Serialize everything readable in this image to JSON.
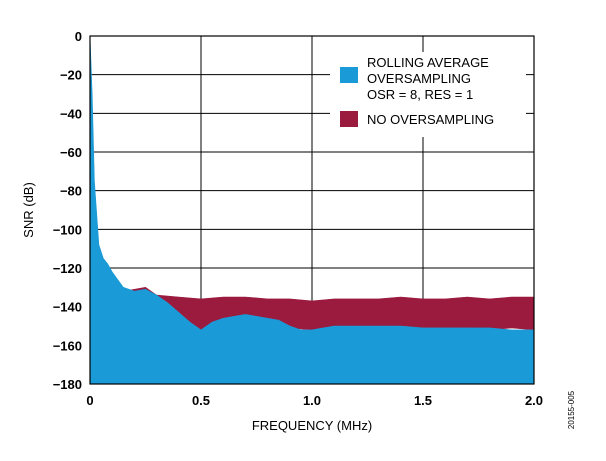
{
  "chart_data": {
    "type": "area",
    "title": "",
    "xlabel": "FREQUENCY (MHz)",
    "ylabel": "SNR (dB)",
    "xlim": [
      0,
      2.0
    ],
    "ylim": [
      -180,
      0
    ],
    "x_ticks": [
      0,
      0.5,
      1.0,
      1.5,
      2.0
    ],
    "x_tick_labels": [
      "0",
      "0.5",
      "1.0",
      "1.5",
      "2.0"
    ],
    "y_ticks": [
      0,
      -20,
      -40,
      -60,
      -80,
      -100,
      -120,
      -140,
      -160,
      -180
    ],
    "y_tick_labels": [
      "0",
      "−20",
      "−40",
      "−60",
      "−80",
      "−100",
      "−120",
      "−140",
      "−160",
      "−180"
    ],
    "grid": true,
    "legend_position": "top-right",
    "series": [
      {
        "name": "NO OVERSAMPLING",
        "color": "#9b1b3f",
        "x": [
          0.0,
          0.1,
          0.2,
          0.25,
          0.3,
          0.4,
          0.5,
          0.6,
          0.7,
          0.8,
          0.9,
          1.0,
          1.1,
          1.2,
          1.3,
          1.4,
          1.5,
          1.6,
          1.7,
          1.8,
          1.9,
          2.0
        ],
        "top": [
          -130,
          -133,
          -131,
          -130,
          -134,
          -135,
          -136,
          -135,
          -135,
          -136,
          -136,
          -137,
          -136,
          -136,
          -136,
          -135,
          -136,
          -136,
          -135,
          -136,
          -135,
          -135
        ],
        "bottom": [
          -180,
          -180,
          -180,
          -180,
          -140,
          -147,
          -152,
          -148,
          -146,
          -148,
          -151,
          -152,
          -150,
          -150,
          -151,
          -150,
          -151,
          -151,
          -151,
          -152,
          -151,
          -152
        ]
      },
      {
        "name": "ROLLING AVERAGE OVERSAMPLING OSR = 8, RES = 1",
        "color": "#1a9ad6",
        "x": [
          0.0,
          0.01,
          0.02,
          0.04,
          0.06,
          0.08,
          0.1,
          0.15,
          0.2,
          0.25,
          0.3,
          0.35,
          0.4,
          0.45,
          0.5,
          0.55,
          0.6,
          0.65,
          0.7,
          0.75,
          0.8,
          0.85,
          0.9,
          0.95,
          1.0,
          1.05,
          1.1,
          1.2,
          1.3,
          1.4,
          1.5,
          1.6,
          1.7,
          1.8,
          1.9,
          2.0
        ],
        "y": [
          0,
          -30,
          -75,
          -108,
          -115,
          -118,
          -122,
          -130,
          -132,
          -131,
          -134,
          -138,
          -143,
          -148,
          -152,
          -148,
          -146,
          -145,
          -144,
          -145,
          -146,
          -147,
          -150,
          -152,
          -152,
          -151,
          -150,
          -150,
          -150,
          -150,
          -151,
          -151,
          -151,
          -151,
          -152,
          -152
        ]
      }
    ],
    "legend": [
      {
        "label_lines": [
          "ROLLING AVERAGE",
          "OVERSAMPLING",
          "OSR = 8, RES = 1"
        ],
        "color": "#1a9ad6"
      },
      {
        "label_lines": [
          "NO OVERSAMPLING"
        ],
        "color": "#9b1b3f"
      }
    ]
  },
  "figure_id": "20155-005"
}
